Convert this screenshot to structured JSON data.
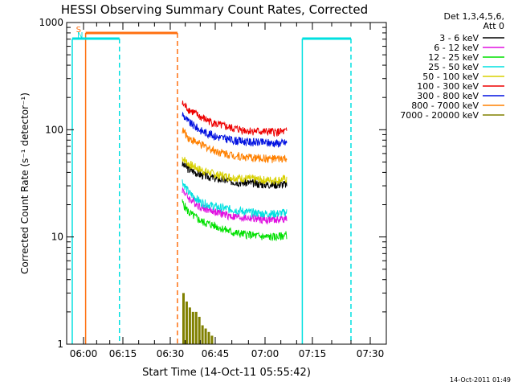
{
  "chart_data": {
    "type": "line",
    "title": "HESSI Observing Summary Count Rates, Corrected",
    "xlabel": "Start Time (14-Oct-11 05:55:42)",
    "ylabel": "Corrected Count Rate (s⁻¹ detector⁻¹)",
    "yscale": "log",
    "ylim": [
      1,
      1000
    ],
    "xlim_minutes_after_0600": [
      -4.3,
      36.2
    ],
    "x_ticks": [
      "06:00",
      "06:15",
      "06:30",
      "06:45",
      "07:00",
      "07:15",
      "07:30"
    ],
    "y_ticks": [
      "1",
      "10",
      "100",
      "1000"
    ],
    "legend_header": [
      "Det 1,3,4,5,6,",
      "Att 0"
    ],
    "legend_position": "top-right outside",
    "timestamp": "14-Oct-2011 01:49",
    "data_window_minutes_after_0600": [
      33.0,
      67.0
    ],
    "series": [
      {
        "name": "3 - 6 keV",
        "color": "#000000",
        "x_min_after_0600": [
          33,
          34,
          36,
          40,
          45,
          50,
          55,
          60,
          64,
          67
        ],
        "values": [
          null,
          48,
          43,
          38,
          35,
          33,
          32,
          31,
          31,
          31
        ]
      },
      {
        "name": "6 - 12 keV",
        "color": "#e010e0",
        "x_min_after_0600": [
          33,
          34,
          36,
          40,
          45,
          50,
          55,
          60,
          64,
          67
        ],
        "values": [
          null,
          28,
          23,
          19,
          17,
          15.5,
          15,
          14.5,
          14.5,
          15
        ]
      },
      {
        "name": "12 - 25 keV",
        "color": "#00e000",
        "x_min_after_0600": [
          33,
          34,
          36,
          40,
          45,
          50,
          55,
          60,
          64,
          67
        ],
        "values": [
          null,
          21,
          17,
          14,
          12.5,
          11,
          10.5,
          10,
          10,
          10.5
        ]
      },
      {
        "name": "25 - 50 keV",
        "color": "#00e0e0",
        "x_min_after_0600": [
          33,
          34,
          36,
          40,
          45,
          50,
          55,
          60,
          64,
          67
        ],
        "values": [
          null,
          33,
          26,
          21,
          19,
          18,
          17,
          16.5,
          16.5,
          17
        ]
      },
      {
        "name": "50 - 100 keV",
        "color": "#d8d000",
        "x_min_after_0600": [
          33,
          34,
          36,
          40,
          45,
          50,
          55,
          60,
          64,
          67
        ],
        "values": [
          null,
          55,
          48,
          42,
          38,
          36,
          35,
          34,
          34,
          35
        ]
      },
      {
        "name": "100 - 300 keV",
        "color": "#ee0000",
        "x_min_after_0600": [
          33,
          34,
          36,
          40,
          45,
          50,
          55,
          60,
          64,
          67
        ],
        "values": [
          null,
          175,
          155,
          130,
          112,
          103,
          98,
          96,
          95,
          96
        ]
      },
      {
        "name": "300 - 800 keV",
        "color": "#0010e0",
        "x_min_after_0600": [
          33,
          34,
          36,
          40,
          45,
          50,
          55,
          60,
          64,
          67
        ],
        "values": [
          null,
          140,
          118,
          98,
          86,
          80,
          77,
          76,
          75,
          76
        ]
      },
      {
        "name": "800 - 7000 keV",
        "color": "#ff8000",
        "x_min_after_0600": [
          33,
          34,
          36,
          40,
          45,
          50,
          55,
          60,
          64,
          67
        ],
        "values": [
          null,
          100,
          84,
          72,
          63,
          58,
          55,
          54,
          53,
          54
        ]
      },
      {
        "name": "7000 - 20000 keV",
        "color": "#808000",
        "x_min_after_0600": [
          33,
          34,
          35,
          36,
          37,
          38,
          39,
          40,
          41,
          42,
          43,
          44
        ],
        "values": [
          null,
          3,
          2.5,
          2.2,
          2,
          2,
          1.8,
          1.5,
          1.4,
          1.3,
          1.2,
          1
        ]
      }
    ],
    "flags": [
      {
        "label": "S",
        "color": "#ff7010",
        "start_min_after_0600": 0.8,
        "end_min_after_0600": 32.4
      },
      {
        "label": "N",
        "color": "#00e0e0",
        "start_min_after_0600": -4.3,
        "end_min_after_0600": 13.7
      },
      {
        "label": "",
        "color": "#00e0e0",
        "start_min_after_0600": 71.8,
        "end_min_after_0600": 85.0
      }
    ]
  }
}
